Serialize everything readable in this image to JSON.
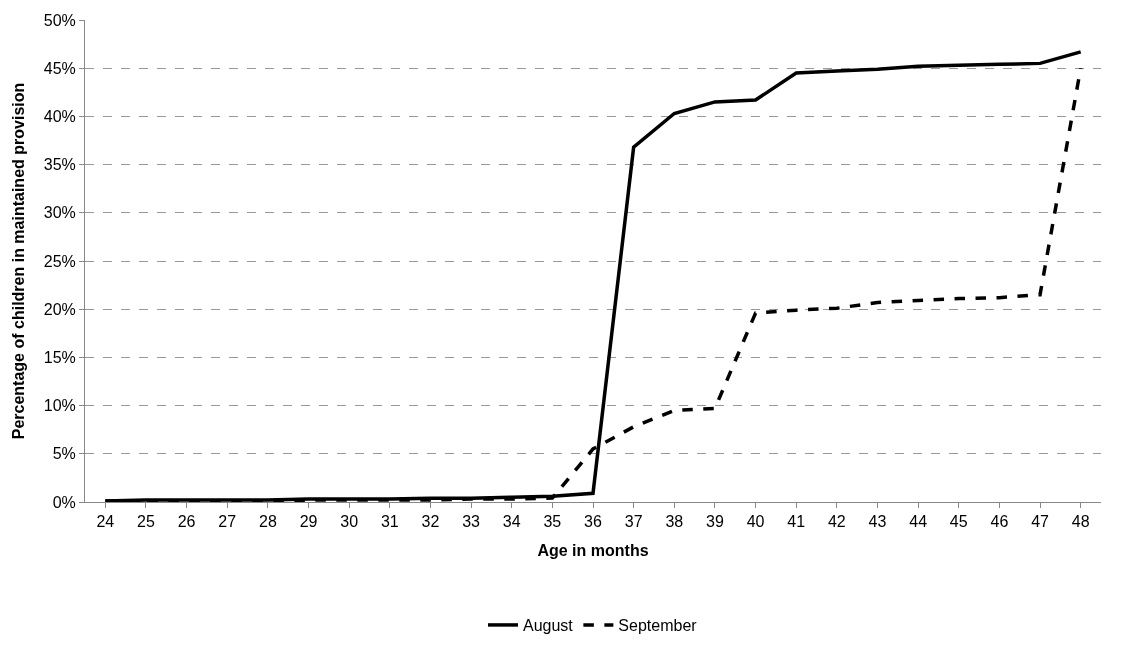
{
  "chart_data": {
    "type": "line",
    "xlabel": "Age in months",
    "ylabel": "Percentage of children in maintained provision",
    "categories": [
      "24",
      "25",
      "26",
      "27",
      "28",
      "29",
      "30",
      "31",
      "32",
      "33",
      "34",
      "35",
      "36",
      "37",
      "38",
      "39",
      "40",
      "41",
      "42",
      "43",
      "44",
      "45",
      "46",
      "47",
      "48"
    ],
    "series": [
      {
        "name": "August",
        "color": "#000000",
        "line_style": "solid",
        "values": [
          0.1,
          0.2,
          0.2,
          0.2,
          0.2,
          0.3,
          0.3,
          0.3,
          0.4,
          0.4,
          0.5,
          0.6,
          0.9,
          36.8,
          40.3,
          41.5,
          41.7,
          44.5,
          44.7,
          44.9,
          45.2,
          45.3,
          45.4,
          45.5,
          46.7
        ]
      },
      {
        "name": "September",
        "color": "#000000",
        "line_style": "dashed",
        "values": [
          0.1,
          0.1,
          0.1,
          0.1,
          0.1,
          0.2,
          0.2,
          0.2,
          0.2,
          0.3,
          0.3,
          0.4,
          5.5,
          7.8,
          9.5,
          9.7,
          19.6,
          19.9,
          20.1,
          20.7,
          20.9,
          21.1,
          21.2,
          21.5,
          45.0
        ]
      }
    ],
    "ylim": [
      0,
      50
    ],
    "yticks": [
      {
        "value": 0,
        "label": "0%"
      },
      {
        "value": 5,
        "label": "5%"
      },
      {
        "value": 10,
        "label": "10%"
      },
      {
        "value": 15,
        "label": "15%"
      },
      {
        "value": 20,
        "label": "20%"
      },
      {
        "value": 25,
        "label": "25%"
      },
      {
        "value": 30,
        "label": "30%"
      },
      {
        "value": 35,
        "label": "35%"
      },
      {
        "value": 40,
        "label": "40%"
      },
      {
        "value": 45,
        "label": "45%"
      },
      {
        "value": 50,
        "label": "50%"
      }
    ],
    "grid": "y",
    "legend": "bottom",
    "marker": "none"
  }
}
